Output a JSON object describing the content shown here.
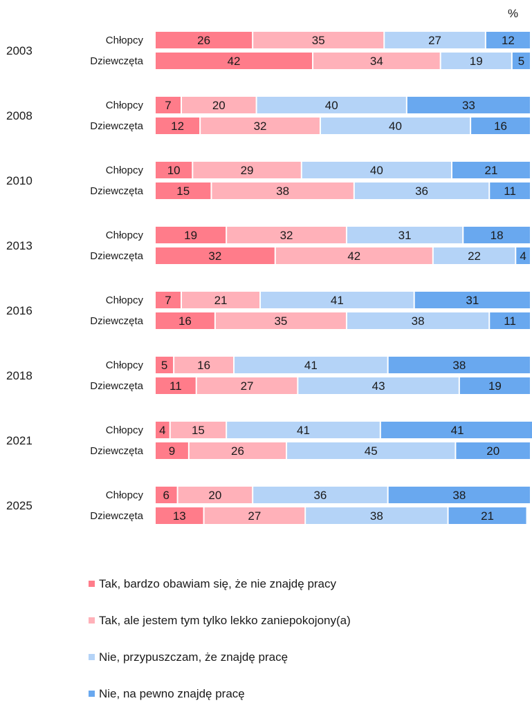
{
  "unit_label": "%",
  "chart_data": {
    "type": "bar",
    "orientation": "horizontal",
    "stacked": "100%",
    "groups": [
      "2003",
      "2008",
      "2010",
      "2013",
      "2016",
      "2018",
      "2021",
      "2025"
    ],
    "subgroups": [
      "Chłopcy",
      "Dziewczęta"
    ],
    "colors": [
      "#ff7c8a",
      "#ffb1b9",
      "#b4d3f7",
      "#69a8ef"
    ],
    "series": [
      {
        "name": "Tak, bardzo obawiam się, że nie znajdę pracy",
        "values": [
          [
            26,
            42
          ],
          [
            7,
            12
          ],
          [
            10,
            15
          ],
          [
            19,
            32
          ],
          [
            7,
            16
          ],
          [
            5,
            11
          ],
          [
            4,
            9
          ],
          [
            6,
            13
          ]
        ]
      },
      {
        "name": "Tak, ale jestem tym tylko lekko zaniepokojony(a)",
        "values": [
          [
            35,
            34
          ],
          [
            20,
            32
          ],
          [
            29,
            38
          ],
          [
            32,
            42
          ],
          [
            21,
            35
          ],
          [
            16,
            27
          ],
          [
            15,
            26
          ],
          [
            20,
            27
          ]
        ]
      },
      {
        "name": "Nie, przypuszczam, że znajdę pracę",
        "values": [
          [
            27,
            19
          ],
          [
            40,
            40
          ],
          [
            40,
            36
          ],
          [
            31,
            22
          ],
          [
            41,
            38
          ],
          [
            41,
            43
          ],
          [
            41,
            45
          ],
          [
            36,
            38
          ]
        ]
      },
      {
        "name": "Nie, na pewno znajdę pracę",
        "values": [
          [
            12,
            5
          ],
          [
            33,
            16
          ],
          [
            21,
            11
          ],
          [
            18,
            4
          ],
          [
            31,
            11
          ],
          [
            38,
            19
          ],
          [
            41,
            20
          ],
          [
            38,
            21
          ]
        ]
      }
    ],
    "xlim": [
      0,
      100
    ],
    "data_labels": true,
    "legend_position": "bottom"
  }
}
